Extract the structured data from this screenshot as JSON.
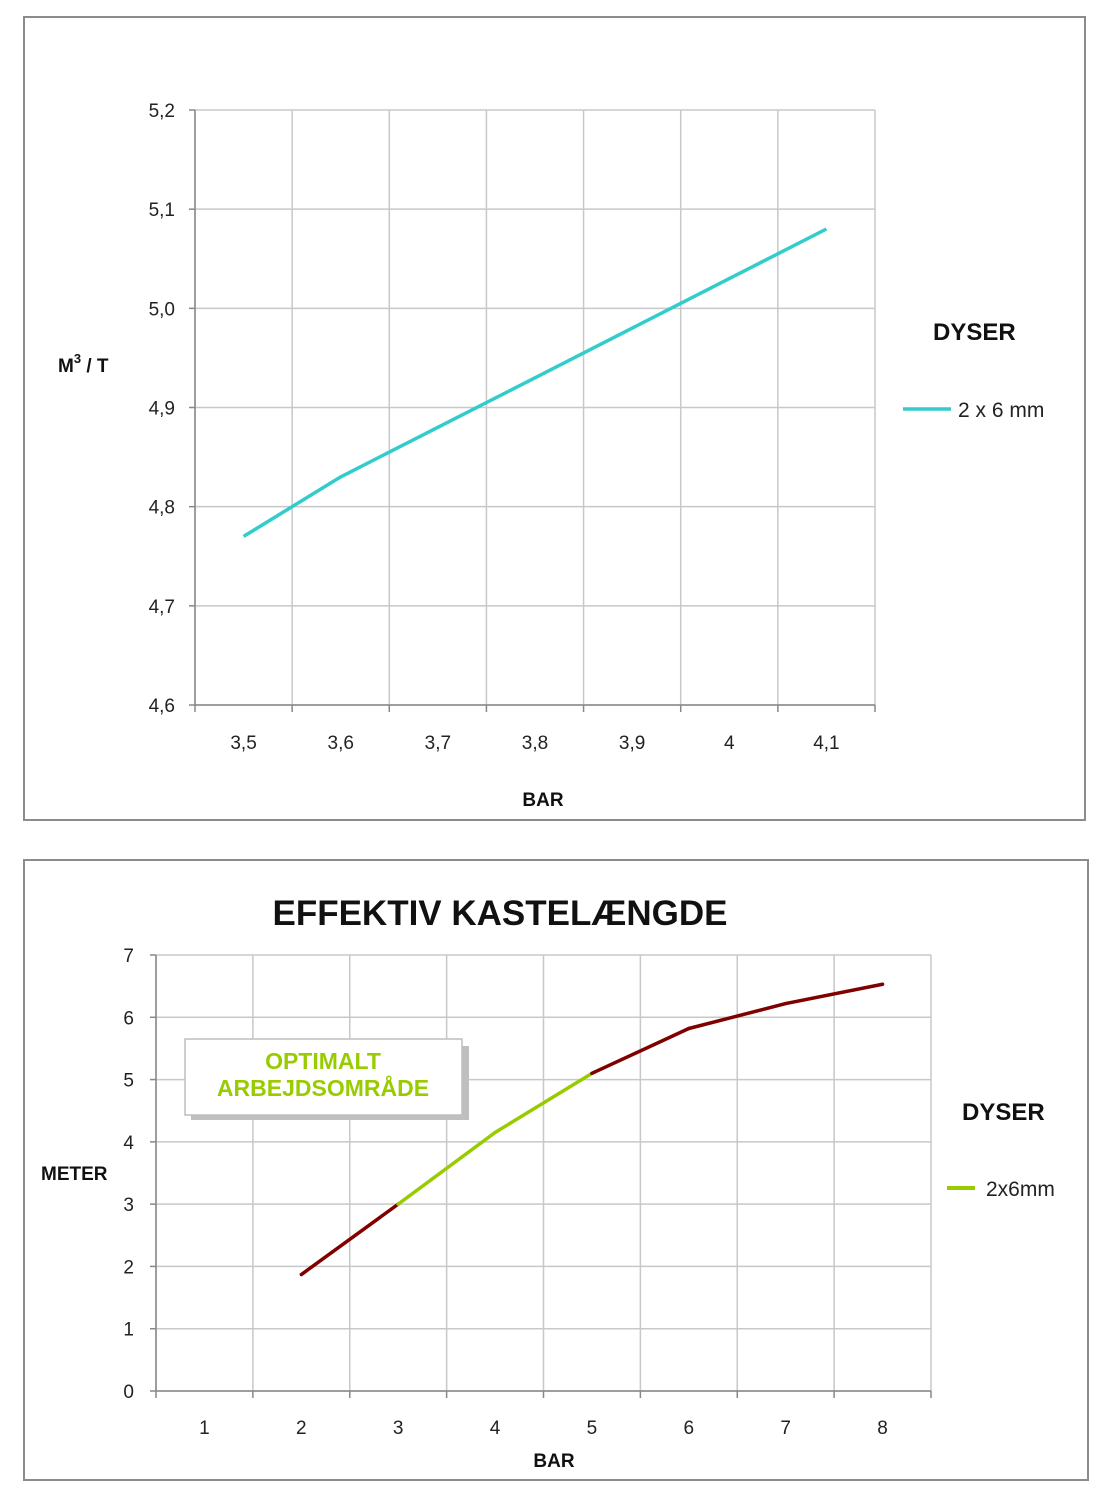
{
  "chart_data": [
    {
      "type": "line",
      "title": "",
      "xlabel": "BAR",
      "ylabel": "M3 / T",
      "ylabel_main": "M",
      "ylabel_sup": "3",
      "ylabel_rest": " / T",
      "categories": [
        "3,5",
        "3,6",
        "3,7",
        "3,8",
        "3,9",
        "4",
        "4,1"
      ],
      "y_ticks": [
        "4,6",
        "4,7",
        "4,8",
        "4,9",
        "5,0",
        "5,1",
        "5,2"
      ],
      "ylim": [
        4.6,
        5.2
      ],
      "grid": true,
      "legend_title": "DYSER",
      "legend_position": "right",
      "series": [
        {
          "name": "2 x 6 mm",
          "color": "#33cccc",
          "x": [
            3.5,
            3.6,
            3.7,
            3.8,
            3.9,
            4.0,
            4.1
          ],
          "values": [
            4.77,
            4.83,
            4.88,
            4.93,
            4.98,
            5.03,
            5.08
          ]
        }
      ]
    },
    {
      "type": "line",
      "title": "EFFEKTIV KASTELÆNGDE",
      "xlabel": "BAR",
      "ylabel": "METER",
      "categories": [
        "1",
        "2",
        "3",
        "4",
        "5",
        "6",
        "7",
        "8"
      ],
      "y_ticks": [
        "0",
        "1",
        "2",
        "3",
        "4",
        "5",
        "6",
        "7"
      ],
      "ylim": [
        0,
        7
      ],
      "grid": true,
      "legend_title": "DYSER",
      "legend_position": "right",
      "annotation": [
        "OPTIMALT",
        "ARBEJDSOMRÅDE"
      ],
      "annotation_color": "#99cc00",
      "outside_color": "#800000",
      "optimal_range": [
        3,
        5
      ],
      "series": [
        {
          "name": "2x6mm",
          "color": "#99cc00",
          "x": [
            2,
            3,
            4,
            5,
            6,
            7,
            8
          ],
          "values": [
            1.87,
            3.0,
            4.15,
            5.1,
            5.82,
            6.22,
            6.53
          ]
        }
      ]
    }
  ]
}
